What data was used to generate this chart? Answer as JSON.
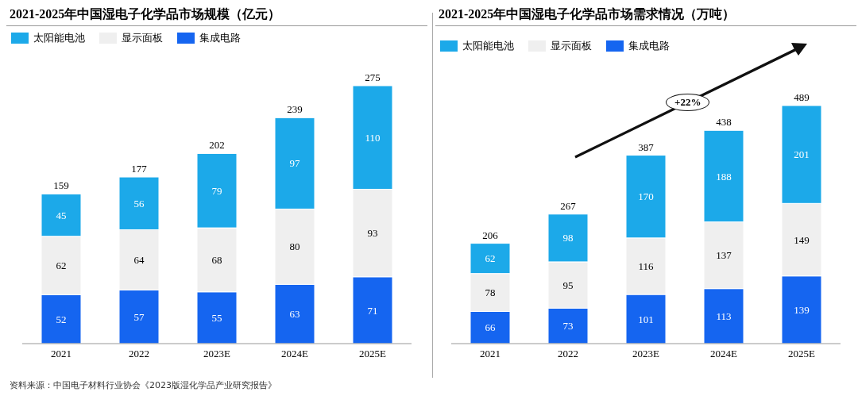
{
  "chart_data": [
    {
      "type": "bar",
      "title": "2021-2025年中国湿电子化学品市场规模（亿元）",
      "categories": [
        "2021",
        "2022",
        "2023E",
        "2024E",
        "2025E"
      ],
      "stacked": true,
      "data_labels": true,
      "legend": "top left",
      "series": [
        {
          "name": "集成电路",
          "color": "#1565f0",
          "values": [
            52,
            57,
            55,
            63,
            71
          ]
        },
        {
          "name": "显示面板",
          "color": "#efefef",
          "values": [
            62,
            64,
            68,
            80,
            93
          ]
        },
        {
          "name": "太阳能电池",
          "color": "#1ca9e9",
          "values": [
            45,
            56,
            79,
            97,
            110
          ]
        }
      ],
      "totals": [
        "159",
        "177",
        "202",
        "239",
        "275"
      ],
      "annotations": [
        "资料来源：中国电子材料行业协会《2023版湿化学品产业研究报告》"
      ]
    },
    {
      "type": "bar",
      "title": "2021-2025年中国湿电子化学品市场需求情况（万吨）",
      "categories": [
        "2021",
        "2022",
        "2023E",
        "2024E",
        "2025E"
      ],
      "stacked": true,
      "data_labels": true,
      "legend": "top left",
      "series": [
        {
          "name": "集成电路",
          "color": "#1565f0",
          "values": [
            66,
            73,
            101,
            113,
            139
          ]
        },
        {
          "name": "显示面板",
          "color": "#efefef",
          "values": [
            78,
            95,
            116,
            137,
            149
          ]
        },
        {
          "name": "太阳能电池",
          "color": "#1ca9e9",
          "values": [
            62,
            98,
            170,
            188,
            201
          ]
        }
      ],
      "totals": [
        "206",
        "267",
        "387",
        "438",
        "489"
      ],
      "annotations": [
        "+22%"
      ]
    }
  ]
}
